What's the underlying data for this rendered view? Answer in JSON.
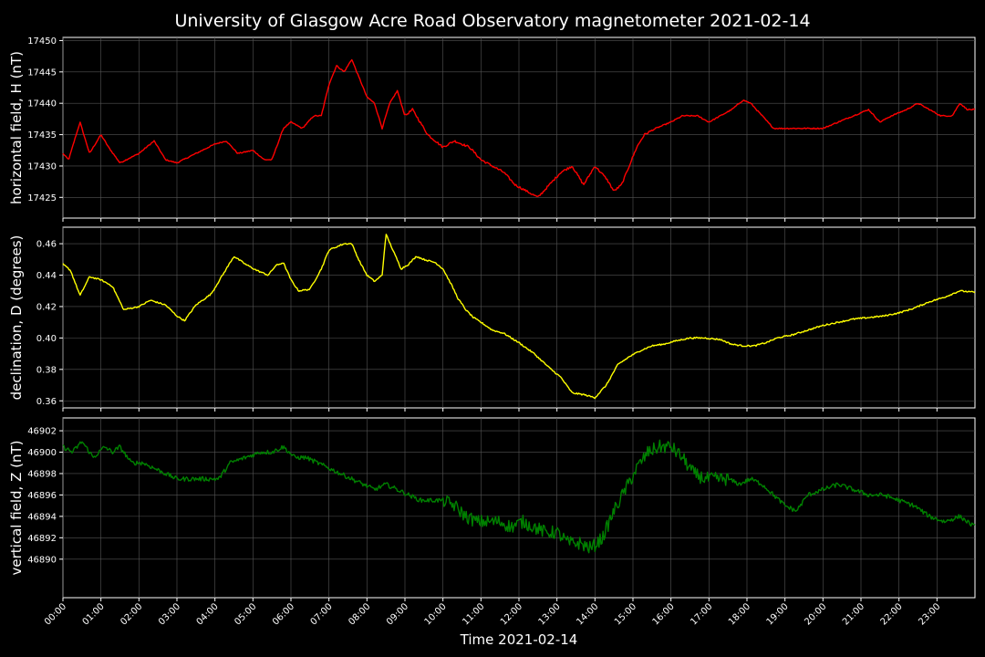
{
  "chart_data": {
    "type": "line",
    "title": "University of Glasgow Acre Road Observatory magnetometer 2021-02-14",
    "xlabel": "Time 2021-02-14",
    "xlim": [
      0,
      24
    ],
    "x_tick_labels": [
      "00:00",
      "01:00",
      "02:00",
      "03:00",
      "04:00",
      "05:00",
      "06:00",
      "07:00",
      "08:00",
      "09:00",
      "10:00",
      "11:00",
      "12:00",
      "13:00",
      "14:00",
      "15:00",
      "16:00",
      "17:00",
      "18:00",
      "19:00",
      "20:00",
      "21:00",
      "22:00",
      "23:00"
    ],
    "grid": true,
    "panels": [
      {
        "ylabel": "horizontal field, H (nT)",
        "ylim": [
          17421.7,
          17450.5
        ],
        "y_ticks": [
          17425,
          17430,
          17435,
          17440,
          17445,
          17450
        ],
        "y_tick_labels": [
          "17425",
          "17430",
          "17435",
          "17440",
          "17445",
          "17450"
        ],
        "color": "#ff0000",
        "x": [
          0,
          0.15,
          0.45,
          0.7,
          1.0,
          1.2,
          1.5,
          2.0,
          2.4,
          2.7,
          3.0,
          3.5,
          4.0,
          4.3,
          4.6,
          5.0,
          5.3,
          5.5,
          5.8,
          6.0,
          6.3,
          6.6,
          6.8,
          7.0,
          7.2,
          7.4,
          7.6,
          7.8,
          8.0,
          8.2,
          8.4,
          8.6,
          8.8,
          9.0,
          9.2,
          9.4,
          9.6,
          9.8,
          10.0,
          10.3,
          10.7,
          11.0,
          11.3,
          11.6,
          11.9,
          12.2,
          12.5,
          12.8,
          13.1,
          13.4,
          13.7,
          14.0,
          14.3,
          14.5,
          14.7,
          14.9,
          15.1,
          15.3,
          15.6,
          16.0,
          16.3,
          16.7,
          17.0,
          17.3,
          17.6,
          17.9,
          18.1,
          18.4,
          18.7,
          19.0,
          19.3,
          19.6,
          20.0,
          20.4,
          20.8,
          21.2,
          21.5,
          21.8,
          22.2,
          22.5,
          22.8,
          23.1,
          23.4,
          23.6,
          23.8,
          24.0
        ],
        "values": [
          17432,
          17431,
          17437,
          17432,
          17435,
          17433,
          17430.5,
          17432,
          17434,
          17431,
          17430.5,
          17432,
          17433.5,
          17434,
          17432,
          17432.5,
          17431,
          17431,
          17436,
          17437,
          17436,
          17438,
          17438,
          17443,
          17446,
          17445,
          17447,
          17444,
          17441,
          17440,
          17436,
          17440,
          17442,
          17438,
          17439,
          17437,
          17435,
          17434,
          17433,
          17434,
          17433,
          17431,
          17430,
          17429,
          17427,
          17426,
          17425,
          17427,
          17429,
          17430,
          17427,
          17430,
          17428,
          17426,
          17427,
          17430,
          17433,
          17435,
          17436,
          17437,
          17438,
          17438,
          17437,
          17438,
          17439,
          17440.5,
          17440,
          17438,
          17436,
          17436,
          17436,
          17436,
          17436,
          17437,
          17438,
          17439,
          17437,
          17438,
          17439,
          17440,
          17439,
          17438,
          17438,
          17440,
          17439,
          17439
        ]
      },
      {
        "ylabel": "declination, D (degrees)",
        "ylim": [
          0.3555,
          0.4705
        ],
        "y_ticks": [
          0.36,
          0.38,
          0.4,
          0.42,
          0.44,
          0.46
        ],
        "y_tick_labels": [
          "0.36",
          "0.38",
          "0.40",
          "0.42",
          "0.44",
          "0.46"
        ],
        "color": "#ffff00",
        "x": [
          0,
          0.2,
          0.45,
          0.7,
          1.0,
          1.3,
          1.6,
          2.0,
          2.3,
          2.7,
          3.0,
          3.2,
          3.5,
          3.9,
          4.2,
          4.5,
          4.8,
          5.1,
          5.4,
          5.6,
          5.8,
          6.0,
          6.2,
          6.5,
          6.8,
          7.0,
          7.2,
          7.4,
          7.6,
          7.8,
          8.0,
          8.2,
          8.4,
          8.5,
          8.7,
          8.9,
          9.1,
          9.3,
          9.5,
          9.8,
          10.0,
          10.2,
          10.4,
          10.6,
          10.8,
          11.0,
          11.3,
          11.6,
          12.0,
          12.4,
          12.8,
          13.1,
          13.4,
          13.7,
          14.0,
          14.3,
          14.6,
          14.9,
          15.2,
          15.5,
          15.8,
          16.1,
          16.5,
          16.9,
          17.3,
          17.6,
          17.9,
          18.2,
          18.5,
          18.8,
          19.2,
          19.6,
          20.0,
          20.4,
          20.8,
          21.2,
          21.6,
          22.0,
          22.4,
          22.8,
          23.2,
          23.6,
          24.0
        ],
        "values": [
          0.447,
          0.443,
          0.427,
          0.439,
          0.437,
          0.433,
          0.418,
          0.42,
          0.424,
          0.421,
          0.414,
          0.411,
          0.421,
          0.428,
          0.44,
          0.452,
          0.447,
          0.443,
          0.44,
          0.446,
          0.448,
          0.437,
          0.43,
          0.431,
          0.444,
          0.456,
          0.458,
          0.46,
          0.46,
          0.449,
          0.44,
          0.436,
          0.44,
          0.466,
          0.455,
          0.444,
          0.447,
          0.452,
          0.45,
          0.448,
          0.444,
          0.435,
          0.425,
          0.418,
          0.413,
          0.41,
          0.405,
          0.403,
          0.397,
          0.39,
          0.381,
          0.375,
          0.365,
          0.364,
          0.362,
          0.37,
          0.383,
          0.388,
          0.392,
          0.395,
          0.396,
          0.398,
          0.4,
          0.4,
          0.399,
          0.396,
          0.395,
          0.395,
          0.397,
          0.4,
          0.402,
          0.405,
          0.408,
          0.41,
          0.412,
          0.413,
          0.414,
          0.416,
          0.419,
          0.423,
          0.426,
          0.43,
          0.429
        ]
      },
      {
        "ylabel": "vertical field, Z (nT)",
        "ylim": [
          46886.4,
          46903.2
        ],
        "y_ticks": [
          46890,
          46892,
          46894,
          46896,
          46898,
          46900,
          46902
        ],
        "y_tick_labels": [
          "46890",
          "46892",
          "46894",
          "46896",
          "46898",
          "46900",
          "46902"
        ],
        "color": "#008000",
        "x": [
          0,
          0.25,
          0.5,
          0.8,
          1.1,
          1.3,
          1.5,
          1.8,
          2.1,
          2.4,
          2.7,
          3.0,
          3.4,
          3.8,
          4.1,
          4.4,
          4.8,
          5.2,
          5.5,
          5.8,
          6.1,
          6.4,
          6.7,
          7.0,
          7.3,
          7.6,
          7.9,
          8.2,
          8.5,
          8.8,
          9.1,
          9.4,
          9.7,
          10.0,
          10.3,
          10.6,
          10.9,
          11.2,
          11.5,
          11.8,
          12.1,
          12.4,
          12.7,
          13.0,
          13.3,
          13.6,
          13.9,
          14.2,
          14.5,
          14.8,
          15.1,
          15.4,
          15.7,
          16.0,
          16.3,
          16.6,
          16.9,
          17.2,
          17.5,
          17.8,
          18.1,
          18.4,
          18.7,
          19.0,
          19.3,
          19.6,
          20.0,
          20.4,
          20.8,
          21.2,
          21.6,
          22.0,
          22.4,
          22.8,
          23.2,
          23.6,
          24.0
        ],
        "values": [
          46900.5,
          46900,
          46901,
          46899.5,
          46900.5,
          46900,
          46900.5,
          46899,
          46899,
          46898.5,
          46898,
          46897.5,
          46897.5,
          46897.5,
          46897.5,
          46899,
          46899.5,
          46900,
          46900,
          46900.5,
          46899.5,
          46899.5,
          46899,
          46898.5,
          46898,
          46897.5,
          46897,
          46896.5,
          46897,
          46896.5,
          46896,
          46895.5,
          46895.5,
          46895.5,
          46895,
          46894,
          46893.5,
          46893.5,
          46893.5,
          46893,
          46893.5,
          46893,
          46892.5,
          46892.5,
          46891.5,
          46891.5,
          46891,
          46892,
          46894.5,
          46896.5,
          46898.5,
          46900,
          46900.5,
          46900.5,
          46899.5,
          46898,
          46897.5,
          46897.5,
          46897.5,
          46897,
          46897.5,
          46897,
          46896,
          46895,
          46894.5,
          46896,
          46896.5,
          46897,
          46896.5,
          46896,
          46896,
          46895.5,
          46895,
          46894,
          46893.5,
          46894,
          46893
        ]
      }
    ]
  }
}
